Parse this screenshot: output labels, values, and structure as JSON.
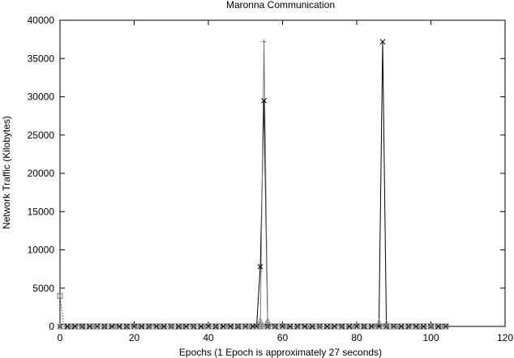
{
  "chart_data": {
    "type": "line",
    "title": "Maronna Communication",
    "xlabel": "Epochs (1 Epoch is approximately 27 seconds)",
    "ylabel": "Network Traffic (Kilobytes)",
    "xlim": [
      0,
      120
    ],
    "ylim": [
      0,
      40000
    ],
    "xticks": [
      0,
      20,
      40,
      60,
      80,
      100,
      120
    ],
    "yticks": [
      0,
      5000,
      10000,
      15000,
      20000,
      25000,
      30000,
      35000,
      40000
    ],
    "grid": false,
    "legend": "none",
    "series": [
      {
        "marker": "square",
        "style": "dotted",
        "color": "#555555",
        "points": [
          [
            0,
            4000
          ],
          [
            1,
            0
          ],
          [
            2,
            0
          ],
          [
            3,
            0
          ],
          [
            4,
            0
          ],
          [
            5,
            0
          ],
          [
            6,
            0
          ],
          [
            7,
            0
          ],
          [
            8,
            0
          ],
          [
            9,
            0
          ],
          [
            10,
            0
          ],
          [
            11,
            0
          ],
          [
            12,
            0
          ],
          [
            13,
            0
          ],
          [
            14,
            0
          ],
          [
            15,
            0
          ],
          [
            16,
            0
          ],
          [
            17,
            0
          ],
          [
            18,
            0
          ],
          [
            19,
            0
          ],
          [
            20,
            0
          ],
          [
            21,
            0
          ],
          [
            22,
            0
          ],
          [
            23,
            0
          ],
          [
            24,
            0
          ],
          [
            25,
            0
          ],
          [
            26,
            0
          ],
          [
            27,
            0
          ],
          [
            28,
            0
          ],
          [
            29,
            0
          ],
          [
            30,
            0
          ],
          [
            31,
            0
          ],
          [
            32,
            0
          ],
          [
            33,
            0
          ],
          [
            34,
            0
          ],
          [
            35,
            0
          ],
          [
            36,
            0
          ],
          [
            37,
            0
          ],
          [
            38,
            0
          ],
          [
            39,
            0
          ],
          [
            40,
            0
          ],
          [
            41,
            0
          ],
          [
            42,
            0
          ],
          [
            43,
            0
          ],
          [
            44,
            0
          ],
          [
            45,
            0
          ],
          [
            46,
            0
          ],
          [
            47,
            0
          ],
          [
            48,
            0
          ],
          [
            49,
            0
          ],
          [
            50,
            0
          ],
          [
            51,
            0
          ],
          [
            52,
            0
          ],
          [
            53,
            0
          ],
          [
            54,
            0
          ],
          [
            55,
            0
          ],
          [
            56,
            0
          ],
          [
            57,
            0
          ],
          [
            58,
            0
          ],
          [
            59,
            0
          ],
          [
            60,
            0
          ],
          [
            61,
            0
          ],
          [
            62,
            0
          ],
          [
            63,
            0
          ],
          [
            64,
            0
          ],
          [
            65,
            0
          ],
          [
            66,
            0
          ],
          [
            67,
            0
          ],
          [
            68,
            0
          ],
          [
            69,
            0
          ],
          [
            70,
            0
          ],
          [
            71,
            0
          ],
          [
            72,
            0
          ],
          [
            73,
            0
          ],
          [
            74,
            0
          ],
          [
            75,
            0
          ],
          [
            76,
            0
          ],
          [
            77,
            0
          ],
          [
            78,
            0
          ],
          [
            79,
            0
          ],
          [
            80,
            0
          ],
          [
            81,
            0
          ],
          [
            82,
            0
          ],
          [
            83,
            0
          ],
          [
            84,
            0
          ],
          [
            85,
            0
          ],
          [
            86,
            0
          ],
          [
            87,
            0
          ],
          [
            88,
            0
          ],
          [
            89,
            0
          ],
          [
            90,
            0
          ],
          [
            91,
            0
          ],
          [
            92,
            0
          ],
          [
            93,
            0
          ],
          [
            94,
            0
          ],
          [
            95,
            0
          ],
          [
            96,
            0
          ],
          [
            97,
            0
          ],
          [
            98,
            0
          ],
          [
            99,
            0
          ],
          [
            100,
            0
          ],
          [
            101,
            0
          ],
          [
            102,
            0
          ],
          [
            103,
            0
          ],
          [
            104,
            0
          ]
        ]
      },
      {
        "marker": "x",
        "style": "solid",
        "color": "#000000",
        "points": [
          [
            0,
            0
          ],
          [
            2,
            0
          ],
          [
            4,
            0
          ],
          [
            6,
            0
          ],
          [
            8,
            0
          ],
          [
            10,
            0
          ],
          [
            12,
            0
          ],
          [
            14,
            0
          ],
          [
            16,
            0
          ],
          [
            18,
            0
          ],
          [
            20,
            0
          ],
          [
            22,
            0
          ],
          [
            24,
            0
          ],
          [
            26,
            0
          ],
          [
            28,
            0
          ],
          [
            30,
            0
          ],
          [
            32,
            0
          ],
          [
            34,
            0
          ],
          [
            36,
            0
          ],
          [
            38,
            0
          ],
          [
            40,
            0
          ],
          [
            42,
            0
          ],
          [
            44,
            0
          ],
          [
            46,
            0
          ],
          [
            48,
            0
          ],
          [
            50,
            0
          ],
          [
            52,
            0
          ],
          [
            53,
            0
          ],
          [
            54,
            7800
          ],
          [
            55,
            29500
          ],
          [
            56,
            0
          ],
          [
            58,
            0
          ],
          [
            60,
            0
          ],
          [
            62,
            0
          ],
          [
            64,
            0
          ],
          [
            66,
            0
          ],
          [
            68,
            0
          ],
          [
            70,
            0
          ],
          [
            72,
            0
          ],
          [
            74,
            0
          ],
          [
            76,
            0
          ],
          [
            78,
            0
          ],
          [
            80,
            0
          ],
          [
            82,
            0
          ],
          [
            84,
            0
          ],
          [
            86,
            0
          ],
          [
            87,
            37200
          ],
          [
            88,
            0
          ],
          [
            90,
            0
          ],
          [
            92,
            0
          ],
          [
            94,
            0
          ],
          [
            96,
            0
          ],
          [
            98,
            0
          ],
          [
            100,
            0
          ],
          [
            102,
            0
          ],
          [
            104,
            0
          ]
        ]
      },
      {
        "marker": "plus",
        "style": "solid",
        "color": "#777777",
        "points": [
          [
            0,
            0
          ],
          [
            3,
            0
          ],
          [
            6,
            0
          ],
          [
            9,
            0
          ],
          [
            12,
            0
          ],
          [
            15,
            0
          ],
          [
            18,
            0
          ],
          [
            21,
            0
          ],
          [
            24,
            0
          ],
          [
            27,
            0
          ],
          [
            30,
            0
          ],
          [
            33,
            0
          ],
          [
            36,
            0
          ],
          [
            39,
            0
          ],
          [
            42,
            0
          ],
          [
            45,
            0
          ],
          [
            48,
            0
          ],
          [
            51,
            0
          ],
          [
            54,
            0
          ],
          [
            55,
            37200
          ],
          [
            56,
            0
          ],
          [
            58,
            0
          ],
          [
            61,
            0
          ],
          [
            64,
            0
          ],
          [
            67,
            0
          ],
          [
            70,
            0
          ],
          [
            73,
            0
          ],
          [
            76,
            0
          ],
          [
            79,
            0
          ],
          [
            82,
            0
          ],
          [
            85,
            0
          ],
          [
            88,
            0
          ],
          [
            91,
            0
          ],
          [
            94,
            0
          ],
          [
            97,
            0
          ],
          [
            100,
            0
          ],
          [
            103,
            0
          ]
        ]
      },
      {
        "marker": "triangle",
        "style": "dotted",
        "color": "#888888",
        "points": [
          [
            0,
            0
          ],
          [
            5,
            0
          ],
          [
            10,
            0
          ],
          [
            15,
            0
          ],
          [
            20,
            0
          ],
          [
            25,
            0
          ],
          [
            30,
            0
          ],
          [
            35,
            0
          ],
          [
            40,
            0
          ],
          [
            45,
            0
          ],
          [
            50,
            0
          ],
          [
            53,
            0
          ],
          [
            54,
            800
          ],
          [
            55,
            0
          ],
          [
            56,
            800
          ],
          [
            57,
            0
          ],
          [
            60,
            0
          ],
          [
            65,
            0
          ],
          [
            70,
            0
          ],
          [
            75,
            0
          ],
          [
            80,
            0
          ],
          [
            85,
            0
          ],
          [
            86,
            600
          ],
          [
            87,
            0
          ],
          [
            88,
            500
          ],
          [
            90,
            0
          ],
          [
            95,
            0
          ],
          [
            100,
            0
          ],
          [
            104,
            0
          ]
        ]
      }
    ]
  }
}
